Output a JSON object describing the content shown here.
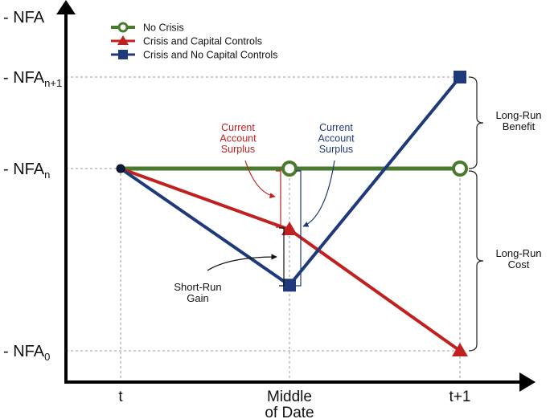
{
  "chart_data": {
    "type": "line",
    "title": "",
    "ylabel": "- NFA",
    "xlabel": "",
    "x_categories": [
      "t",
      "Middle of Date",
      "t+1"
    ],
    "x_labels": [
      [
        "t"
      ],
      [
        "Middle",
        "of Date"
      ],
      [
        "t+1"
      ]
    ],
    "y_levels": [
      {
        "key": "nfa_n1",
        "label": "- NFA",
        "sub": "n+1",
        "value": 3
      },
      {
        "key": "nfa_n",
        "label": "- NFA",
        "sub": "n",
        "value": 2
      },
      {
        "key": "nfa_0",
        "label": "- NFA",
        "sub": "0",
        "value": 0
      }
    ],
    "series": [
      {
        "name": "No Crisis",
        "color": "#4a7a2e",
        "marker": "circle",
        "values": [
          2,
          2,
          2
        ]
      },
      {
        "name": "Crisis and Capital Controls",
        "color": "#c0201f",
        "marker": "triangle",
        "values": [
          2,
          1.33,
          0
        ]
      },
      {
        "name": "Crisis and No Capital Controls",
        "color": "#1f3a7a",
        "marker": "square",
        "values": [
          2,
          0.72,
          3
        ]
      }
    ],
    "annotations": {
      "ca_surplus_red": {
        "lines": [
          "Current",
          "Account",
          "Surplus"
        ],
        "color": "#c0201f"
      },
      "ca_surplus_blue": {
        "lines": [
          "Current",
          "Account",
          "Surplus"
        ],
        "color": "#1f3a7a"
      },
      "short_run_gain": {
        "lines": [
          "Short-Run",
          "Gain"
        ],
        "color": "#111111"
      },
      "long_run_benefit": {
        "lines": [
          "Long-Run",
          "Benefit"
        ],
        "color": "#111111"
      },
      "long_run_cost": {
        "lines": [
          "Long-Run",
          "Cost"
        ],
        "color": "#111111"
      }
    }
  }
}
